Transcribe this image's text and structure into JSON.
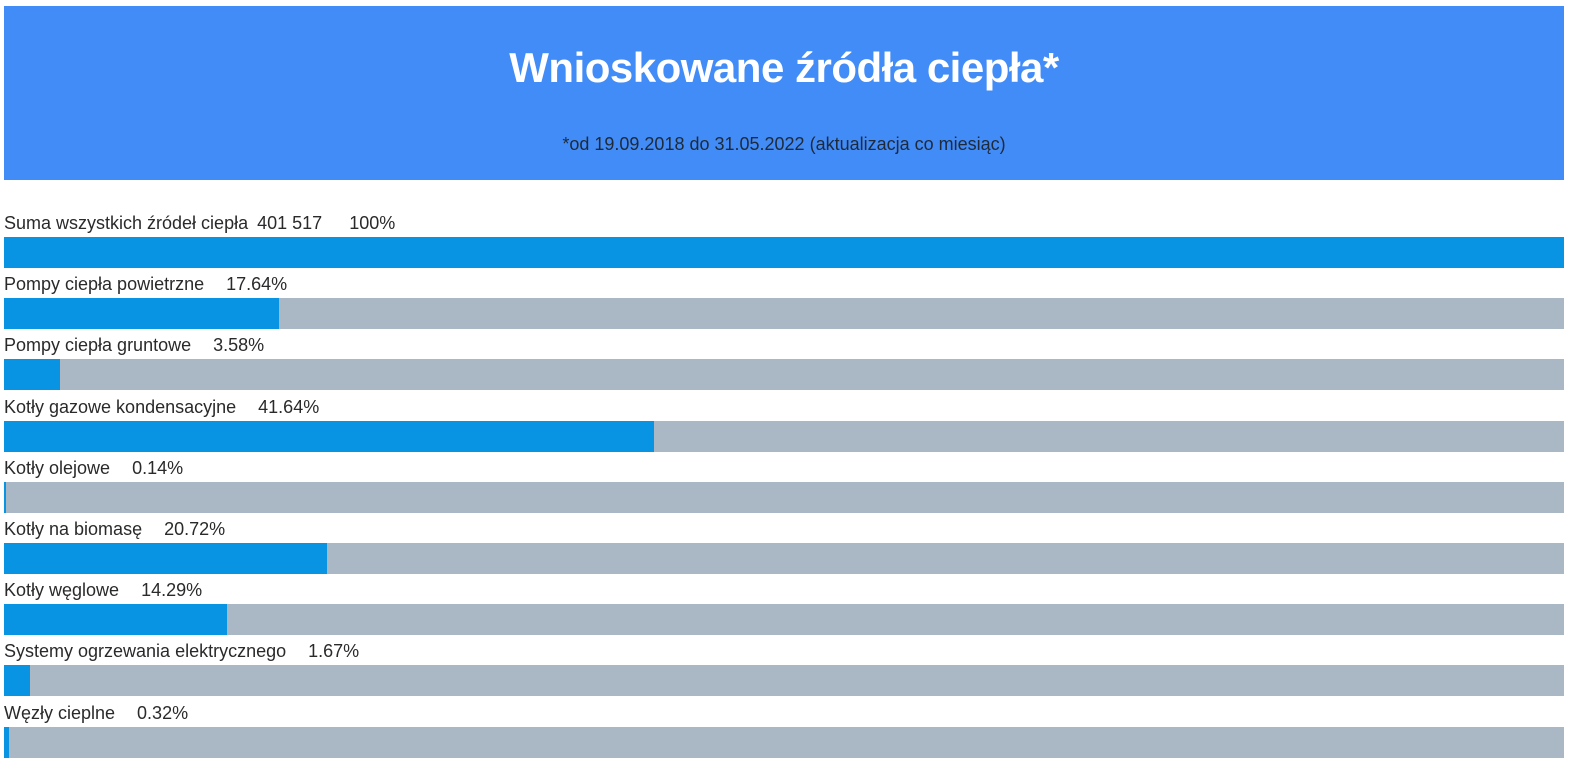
{
  "header": {
    "title": "Wnioskowane źródła ciepła*",
    "subtitle": "*od 19.09.2018 do 31.05.2022 (aktualizacja co miesiąc)"
  },
  "colors": {
    "header_bg": "#428cf7",
    "bar_fill": "#0893e3",
    "bar_track": "#aab7c4"
  },
  "chart_data": {
    "type": "bar",
    "orientation": "horizontal",
    "title": "Wnioskowane źródła ciepła*",
    "subtitle": "*od 19.09.2018 do 31.05.2022 (aktualizacja co miesiąc)",
    "xlim": [
      0,
      100
    ],
    "unit": "%",
    "total": {
      "label": "Suma wszystkich źródeł ciepła",
      "count": "401 517",
      "value": 100,
      "display": "100%"
    },
    "categories": [
      "Pompy ciepła powietrzne",
      "Pompy ciepła gruntowe",
      "Kotły gazowe kondensacyjne",
      "Kotły olejowe",
      "Kotły na biomasę",
      "Kotły węglowe",
      "Systemy ogrzewania elektrycznego",
      "Węzły cieplne"
    ],
    "values": [
      17.64,
      3.58,
      41.64,
      0.14,
      20.72,
      14.29,
      1.67,
      0.32
    ],
    "display": [
      "17.64%",
      "3.58%",
      "41.64%",
      "0.14%",
      "20.72%",
      "14.29%",
      "1.67%",
      "0.32%"
    ]
  }
}
